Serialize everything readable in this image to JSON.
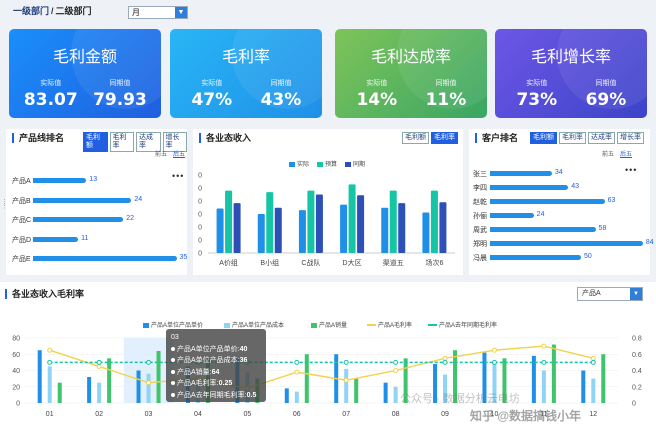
{
  "header": {
    "breadcrumb_level1": "一级部门",
    "breadcrumb_sep": "/",
    "breadcrumb_level2": "二级部门",
    "period_select": "月"
  },
  "kpis": [
    {
      "title": "毛利金额",
      "actual_label": "实际值",
      "yoy_label": "同期值",
      "actual": "83.07",
      "yoy": "79.93"
    },
    {
      "title": "毛利率",
      "actual_label": "实际值",
      "yoy_label": "同期值",
      "actual": "47%",
      "yoy": "43%"
    },
    {
      "title": "毛利达成率",
      "actual_label": "实际值",
      "yoy_label": "同期值",
      "actual": "14%",
      "yoy": "11%"
    },
    {
      "title": "毛利增长率",
      "actual_label": "实际值",
      "yoy_label": "同期值",
      "actual": "73%",
      "yoy": "69%"
    }
  ],
  "product_rank": {
    "title": "产品线排名",
    "tabs": [
      "毛利额",
      "毛利率",
      "达成率",
      "增长率"
    ],
    "pager_prev": "前五",
    "pager_next": "后五",
    "more": "•••",
    "items": [
      {
        "name": "产品A",
        "value": 13
      },
      {
        "name": "产品B",
        "value": 24
      },
      {
        "name": "产品C",
        "value": 22
      },
      {
        "name": "产品D",
        "value": 11
      },
      {
        "name": "产品E",
        "value": 35
      }
    ]
  },
  "dept_income": {
    "title": "各业态收入",
    "tabs": [
      "毛利额",
      "毛利率"
    ],
    "legend": [
      "实际",
      "预算",
      "同期"
    ],
    "y_ticks": [
      "0",
      "0",
      "0",
      "0",
      "0",
      "0",
      "0"
    ],
    "categories": [
      "A价组",
      "B小组",
      "C战队",
      "D大区",
      "渠道五",
      "场次6"
    ]
  },
  "customer_rank": {
    "title": "客户排名",
    "tabs": [
      "毛利额",
      "毛利率",
      "达成率",
      "增长率"
    ],
    "pager_prev": "前五",
    "pager_next": "后五",
    "more": "•••",
    "items": [
      {
        "name": "张三",
        "value": 34
      },
      {
        "name": "李四",
        "value": 43
      },
      {
        "name": "赵乾",
        "value": 63
      },
      {
        "name": "孙俪",
        "value": 24
      },
      {
        "name": "周武",
        "value": 58
      },
      {
        "name": "郑明",
        "value": 84
      },
      {
        "name": "冯晨",
        "value": 50
      }
    ]
  },
  "margin_section": {
    "title": "各业态收入毛利率",
    "product_select": "产品A",
    "legend": [
      "产品A单位产品单价",
      "产品A单位产品成本",
      "产品A销量",
      "产品A毛利率",
      "产品A去年同期毛利率"
    ],
    "y_left_ticks": [
      "80",
      "60",
      "40",
      "20",
      "0"
    ],
    "y_right_ticks": [
      "0.8",
      "0.6",
      "0.4",
      "0.2",
      "0"
    ],
    "tooltip": {
      "title": "03",
      "rows": [
        {
          "label": "产品A单位产品单价",
          "value": "40"
        },
        {
          "label": "产品A单位产品成本",
          "value": "36"
        },
        {
          "label": "产品A销量",
          "value": "64"
        },
        {
          "label": "产品A毛利率",
          "value": "0.25"
        },
        {
          "label": "产品A去年同期毛利率",
          "value": "0.5"
        }
      ]
    },
    "watermark": "公众号 · 数据分析云电坊",
    "watermark2": "知乎 @数据搞钱小年"
  },
  "colors": {
    "blue": "#1f8fe8",
    "teal": "#16c5a5",
    "navy": "#2c4fb8",
    "green": "#3fc46b",
    "lightblue": "#8fd3f7",
    "yellow": "#f2d24c"
  },
  "chart_data": [
    {
      "type": "bar",
      "title": "各业态收入",
      "categories": [
        "A价组",
        "B小组",
        "C战队",
        "D大区",
        "渠道五",
        "场次6"
      ],
      "series": [
        {
          "name": "实际",
          "values": [
            0.57,
            0.5,
            0.55,
            0.62,
            0.58,
            0.52
          ]
        },
        {
          "name": "预算",
          "values": [
            0.8,
            0.78,
            0.8,
            0.88,
            0.8,
            0.8
          ]
        },
        {
          "name": "同期",
          "values": [
            0.64,
            0.58,
            0.75,
            0.74,
            0.64,
            0.65
          ]
        }
      ]
    },
    {
      "type": "bar",
      "title": "产品线排名",
      "categories": [
        "产品A",
        "产品B",
        "产品C",
        "产品D",
        "产品E"
      ],
      "values": [
        13,
        24,
        22,
        11,
        35
      ]
    },
    {
      "type": "bar",
      "title": "客户排名",
      "categories": [
        "张三",
        "李四",
        "赵乾",
        "孙俪",
        "周武",
        "郑明",
        "冯晨"
      ],
      "values": [
        34,
        43,
        63,
        24,
        58,
        84,
        50
      ]
    },
    {
      "type": "line",
      "title": "各业态收入毛利率",
      "categories": [
        "01",
        "02",
        "03",
        "04",
        "05",
        "06",
        "07",
        "08",
        "09",
        "10",
        "11",
        "12"
      ],
      "ylim": [
        0,
        80
      ],
      "y2lim": [
        0,
        0.8
      ],
      "series": [
        {
          "name": "产品A单位产品单价",
          "type": "bar",
          "values": [
            65,
            32,
            40,
            45,
            55,
            18,
            60,
            25,
            48,
            62,
            58,
            40
          ]
        },
        {
          "name": "产品A单位产品成本",
          "type": "bar",
          "values": [
            45,
            25,
            36,
            28,
            38,
            14,
            42,
            20,
            35,
            50,
            40,
            30
          ]
        },
        {
          "name": "产品A销量",
          "type": "bar",
          "values": [
            25,
            55,
            64,
            55,
            30,
            60,
            30,
            55,
            65,
            55,
            72,
            60
          ]
        },
        {
          "name": "产品A毛利率",
          "type": "line",
          "values": [
            0.65,
            0.45,
            0.25,
            0.3,
            0.18,
            0.38,
            0.28,
            0.4,
            0.55,
            0.65,
            0.7,
            0.55
          ]
        },
        {
          "name": "产品A去年同期毛利率",
          "type": "line",
          "values": [
            0.5,
            0.5,
            0.5,
            0.5,
            0.5,
            0.5,
            0.5,
            0.5,
            0.5,
            0.5,
            0.5,
            0.5
          ]
        }
      ]
    }
  ]
}
